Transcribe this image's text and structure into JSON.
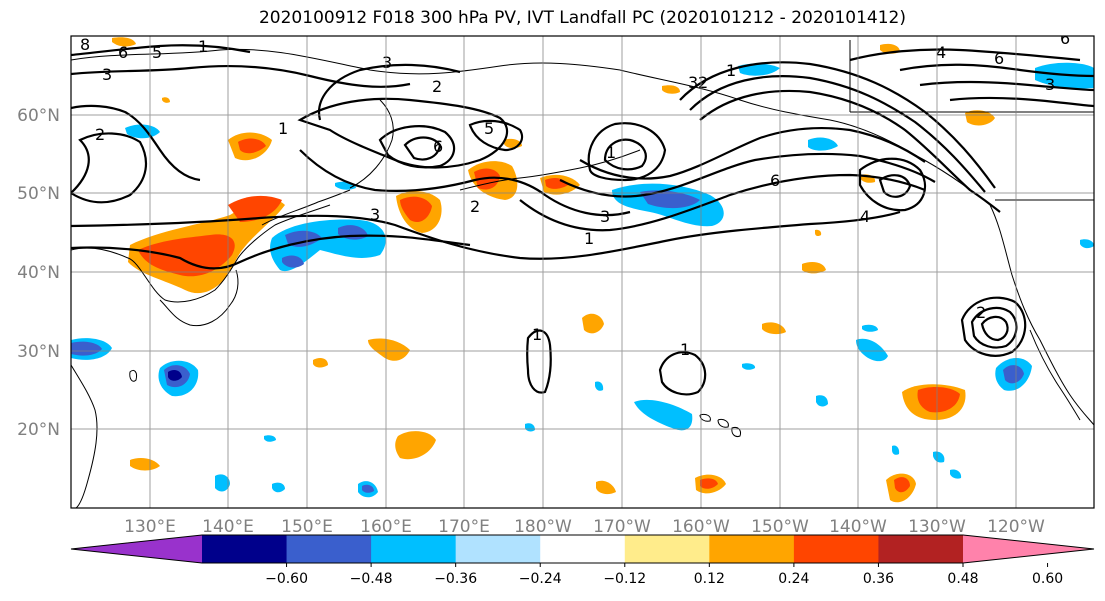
{
  "title": "2020100912 F018 300 hPa PV, IVT Landfall PC (2020101212 - 2020101412)",
  "lat_labels": [
    "60°N",
    "50°N",
    "40°N",
    "30°N",
    "20°N"
  ],
  "lon_labels": [
    "130°E",
    "140°E",
    "150°E",
    "160°E",
    "170°E",
    "180°W",
    "170°W",
    "160°W",
    "150°W",
    "140°W",
    "130°W",
    "120°W"
  ],
  "colorbar": {
    "colors": [
      "#9932cc",
      "#00008b",
      "#3a5fcd",
      "#00bfff",
      "#b0e2ff",
      "#ffffff",
      "#ffec8b",
      "#ffa500",
      "#ff4500",
      "#b22222",
      "#ff82ab"
    ],
    "tick_labels": [
      "−0.60",
      "−0.48",
      "−0.36",
      "−0.24",
      "−0.12",
      "0.12",
      "0.24",
      "0.36",
      "0.48",
      "0.60"
    ]
  },
  "contour_labels": [
    "8",
    "6",
    "5",
    "1",
    "3",
    "2",
    "2",
    "3",
    "6",
    "5",
    "3",
    "1",
    "2",
    "3",
    "1",
    "1",
    "6",
    "3",
    "6",
    "4",
    "2",
    "1",
    "1",
    "1",
    "6",
    "3",
    "4",
    "2"
  ]
}
